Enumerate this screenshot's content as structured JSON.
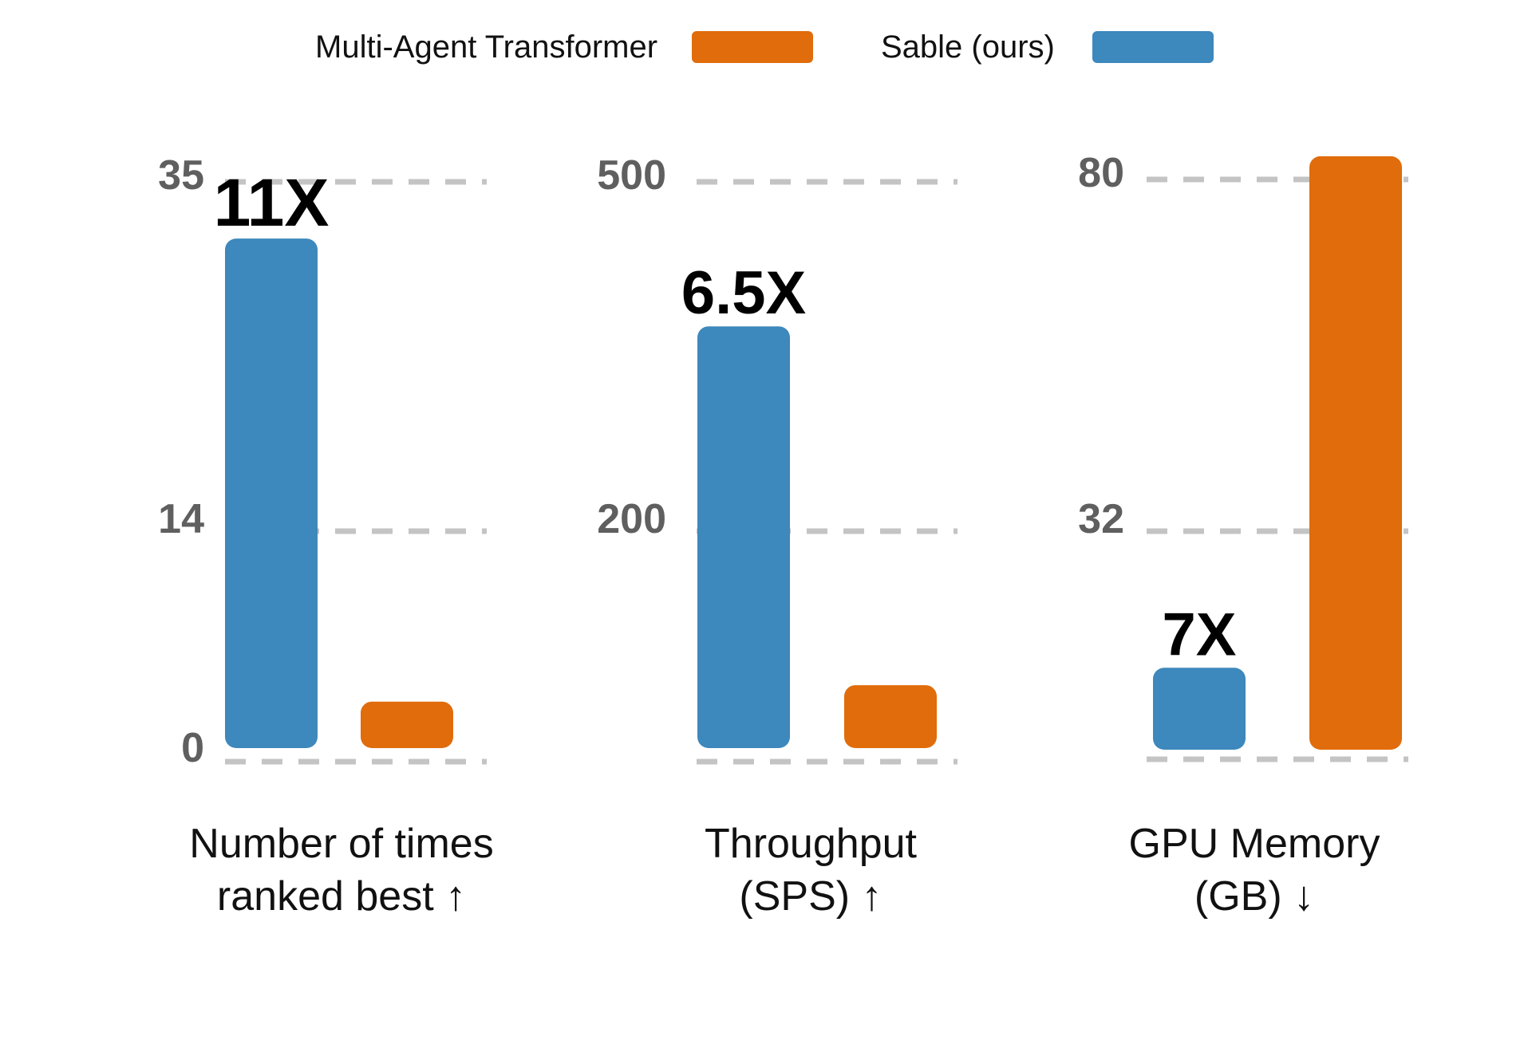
{
  "chart_data": {
    "type": "bar",
    "legend": {
      "placement": "top-center",
      "entries": [
        {
          "name": "Multi-Agent Transformer",
          "color": "#e06c0b"
        },
        {
          "name": "Sable (ours)",
          "color": "#3d88bc"
        }
      ]
    },
    "colors": {
      "sable": "#3d88bc",
      "mat": "#e06c0b",
      "grid": "#c4c4c4",
      "tick": "#5f5f5f"
    },
    "grid": true,
    "panels": [
      {
        "id": "ranked-best",
        "xlabel_lines": [
          "Number of times",
          "ranked best ↑"
        ],
        "ticks": [
          {
            "value": 0,
            "label": "0"
          },
          {
            "value": 14,
            "label": "14"
          },
          {
            "value": 35,
            "label": "35"
          }
        ],
        "series": [
          {
            "name": "Sable (ours)",
            "value": 32
          },
          {
            "name": "Multi-Agent Transformer",
            "value": 3
          }
        ],
        "annotation": {
          "text": "11X",
          "over": "Sable (ours)"
        }
      },
      {
        "id": "throughput",
        "xlabel_lines": [
          "Throughput",
          "(SPS) ↑"
        ],
        "ticks": [
          {
            "value": 0,
            "label": ""
          },
          {
            "value": 200,
            "label": "200"
          },
          {
            "value": 500,
            "label": "500"
          }
        ],
        "series": [
          {
            "name": "Sable (ours)",
            "value": 380
          },
          {
            "name": "Multi-Agent Transformer",
            "value": 58
          }
        ],
        "annotation": {
          "text": "6.5X",
          "over": "Sable (ours)"
        }
      },
      {
        "id": "gpu-memory",
        "xlabel_lines": [
          "GPU Memory",
          "(GB) ↓"
        ],
        "ticks": [
          {
            "value": 0,
            "label": ""
          },
          {
            "value": 32,
            "label": "32"
          },
          {
            "value": 80,
            "label": "80"
          }
        ],
        "series": [
          {
            "name": "Sable (ours)",
            "value": 12
          },
          {
            "name": "Multi-Agent Transformer",
            "value": 84
          }
        ],
        "annotation": {
          "text": "7X",
          "over": "Sable (ours)"
        }
      }
    ]
  }
}
